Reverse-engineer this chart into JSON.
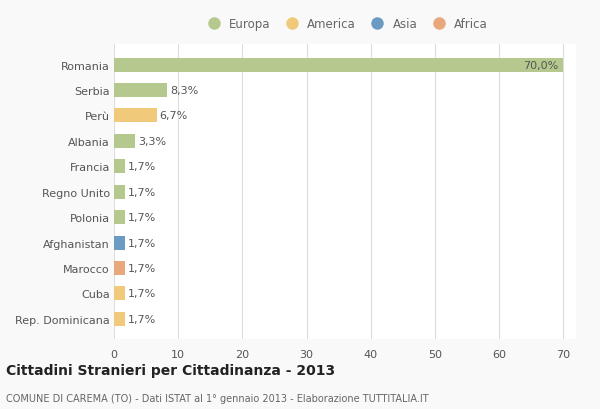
{
  "countries": [
    "Romania",
    "Serbia",
    "Perù",
    "Albania",
    "Francia",
    "Regno Unito",
    "Polonia",
    "Afghanistan",
    "Marocco",
    "Cuba",
    "Rep. Dominicana"
  ],
  "values": [
    70.0,
    8.3,
    6.7,
    3.3,
    1.7,
    1.7,
    1.7,
    1.7,
    1.7,
    1.7,
    1.7
  ],
  "labels": [
    "70,0%",
    "8,3%",
    "6,7%",
    "3,3%",
    "1,7%",
    "1,7%",
    "1,7%",
    "1,7%",
    "1,7%",
    "1,7%",
    "1,7%"
  ],
  "colors": [
    "#b5c98e",
    "#b5c98e",
    "#f0c97a",
    "#b5c98e",
    "#b5c98e",
    "#b5c98e",
    "#b5c98e",
    "#6b9bc3",
    "#e8a87c",
    "#f0c97a",
    "#f0c97a"
  ],
  "legend_labels": [
    "Europa",
    "America",
    "Asia",
    "Africa"
  ],
  "legend_colors": [
    "#b5c98e",
    "#f0c97a",
    "#6b9bc3",
    "#e8a87c"
  ],
  "title": "Cittadini Stranieri per Cittadinanza - 2013",
  "subtitle": "COMUNE DI CAREMA (TO) - Dati ISTAT al 1° gennaio 2013 - Elaborazione TUTTITALIA.IT",
  "xlim": [
    0,
    72
  ],
  "xticks": [
    0,
    10,
    20,
    30,
    40,
    50,
    60,
    70
  ],
  "bg_color": "#f9f9f9",
  "plot_bg_color": "#ffffff",
  "grid_color": "#dddddd",
  "bar_height": 0.55,
  "label_fontsize": 8,
  "tick_fontsize": 8,
  "title_fontsize": 10,
  "subtitle_fontsize": 7
}
